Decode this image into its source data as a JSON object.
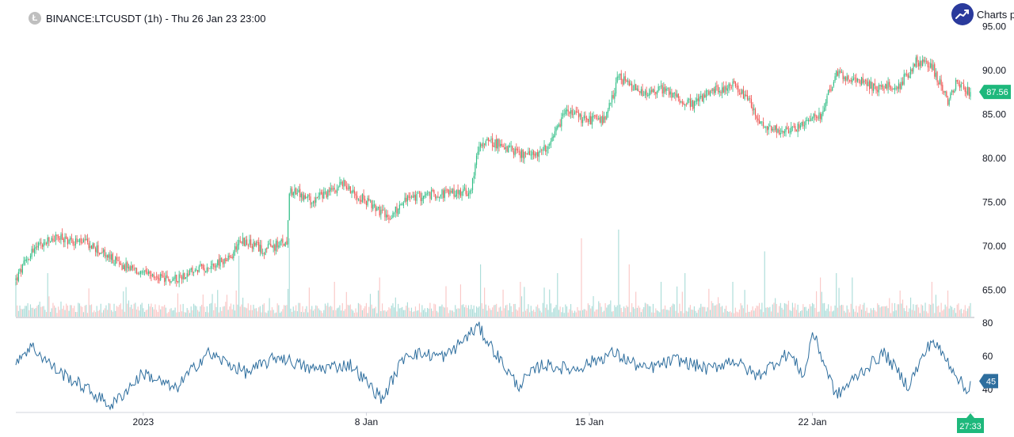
{
  "header": {
    "symbol_title": "BINANCE:LTCUSDT (1h) - Thu 26 Jan 23 23:00",
    "coin_icon_name": "litecoin-icon",
    "logo_text": "Charts p",
    "logo_icon_name": "trend-up-icon"
  },
  "colors": {
    "up": "#26a69a",
    "down": "#ef5350",
    "up_candle": "#2ebd85",
    "rsi_line": "#2e6e9e",
    "rsi_label_bg": "#2e6e9e",
    "price_label_bg": "#1eb87c",
    "axis_text": "#131722",
    "divider": "#b2b5be"
  },
  "chart_data": [
    {
      "type": "candlestick",
      "name": "price",
      "x_range": [
        "2022-12-28",
        "2023-01-26 23:00"
      ],
      "ylim": [
        62,
        95.5
      ],
      "y_ticks": [
        "95.00",
        "90.00",
        "85.00",
        "80.00",
        "75.00",
        "70.00",
        "65.00"
      ],
      "y_tick_values": [
        95,
        90,
        85,
        80,
        75,
        70,
        65
      ],
      "last_price": "87.56",
      "last_price_value": 87.56,
      "close_anchors": [
        [
          "2022-12-28 00:00",
          66.2
        ],
        [
          "2022-12-28 12:00",
          69.5
        ],
        [
          "2022-12-29 06:00",
          71.0
        ],
        [
          "2022-12-30 06:00",
          70.3
        ],
        [
          "2022-12-31 06:00",
          68.0
        ],
        [
          "2023-01-01 00:00",
          66.8
        ],
        [
          "2023-01-01 20:00",
          66.1
        ],
        [
          "2023-01-02 18:00",
          67.4
        ],
        [
          "2023-01-03 18:00",
          68.6
        ],
        [
          "2023-01-04 00:00",
          70.8
        ],
        [
          "2023-01-04 18:00",
          69.6
        ],
        [
          "2023-01-05 12:00",
          70.5
        ],
        [
          "2023-01-05 14:00",
          76.5
        ],
        [
          "2023-01-06 06:00",
          75.2
        ],
        [
          "2023-01-06 18:00",
          76.0
        ],
        [
          "2023-01-07 06:00",
          77.2
        ],
        [
          "2023-01-07 18:00",
          75.8
        ],
        [
          "2023-01-08 12:00",
          73.8
        ],
        [
          "2023-01-08 16:00",
          73.1
        ],
        [
          "2023-01-09 06:00",
          75.4
        ],
        [
          "2023-01-10 06:00",
          76.0
        ],
        [
          "2023-01-11 06:00",
          76.2
        ],
        [
          "2023-01-11 14:00",
          82.0
        ],
        [
          "2023-01-12 06:00",
          81.6
        ],
        [
          "2023-01-13 00:00",
          80.2
        ],
        [
          "2023-01-13 18:00",
          81.2
        ],
        [
          "2023-01-14 06:00",
          85.5
        ],
        [
          "2023-01-14 18:00",
          84.5
        ],
        [
          "2023-01-15 12:00",
          84.3
        ],
        [
          "2023-01-15 22:00",
          89.3
        ],
        [
          "2023-01-16 06:00",
          88.3
        ],
        [
          "2023-01-16 18:00",
          87.2
        ],
        [
          "2023-01-17 06:00",
          88.0
        ],
        [
          "2023-01-18 06:00",
          86.0
        ],
        [
          "2023-01-18 18:00",
          87.5
        ],
        [
          "2023-01-19 12:00",
          88.3
        ],
        [
          "2023-01-20 00:00",
          86.6
        ],
        [
          "2023-01-20 12:00",
          83.3
        ],
        [
          "2023-01-21 06:00",
          83.1
        ],
        [
          "2023-01-21 18:00",
          84.0
        ],
        [
          "2023-01-22 06:00",
          85.0
        ],
        [
          "2023-01-22 18:00",
          89.6
        ],
        [
          "2023-01-23 06:00",
          89.2
        ],
        [
          "2023-01-24 00:00",
          88.0
        ],
        [
          "2023-01-24 18:00",
          88.4
        ],
        [
          "2023-01-25 06:00",
          91.0
        ],
        [
          "2023-01-25 18:00",
          90.5
        ],
        [
          "2023-01-26 06:00",
          86.6
        ],
        [
          "2023-01-26 12:00",
          88.6
        ],
        [
          "2023-01-26 23:00",
          87.56
        ]
      ],
      "volume_spikes": [
        [
          "2022-12-28 00:00",
          4
        ],
        [
          "2022-12-29 00:00",
          5
        ],
        [
          "2023-01-04 00:00",
          7
        ],
        [
          "2023-01-05 14:00",
          9
        ],
        [
          "2023-01-07 00:00",
          4
        ],
        [
          "2023-01-08 10:00",
          4.5
        ],
        [
          "2023-01-10 12:00",
          3.5
        ],
        [
          "2023-01-11 14:00",
          6
        ],
        [
          "2023-01-12 20:00",
          4
        ],
        [
          "2023-01-14 00:00",
          5
        ],
        [
          "2023-01-14 18:00",
          9
        ],
        [
          "2023-01-15 22:00",
          10
        ],
        [
          "2023-01-16 06:00",
          6
        ],
        [
          "2023-01-17 06:00",
          4
        ],
        [
          "2023-01-18 00:00",
          5
        ],
        [
          "2023-01-19 12:00",
          4
        ],
        [
          "2023-01-20 12:00",
          7.5
        ],
        [
          "2023-01-22 06:00",
          4.5
        ],
        [
          "2023-01-22 18:00",
          5
        ],
        [
          "2023-01-23 06:00",
          4.5
        ],
        [
          "2023-01-24 18:00",
          3
        ],
        [
          "2023-01-25 18:00",
          4
        ],
        [
          "2023-01-26 06:00",
          3
        ]
      ]
    },
    {
      "type": "line",
      "name": "rsi",
      "ylim": [
        27,
        82
      ],
      "y_ticks": [
        "80",
        "60",
        "40"
      ],
      "y_tick_values": [
        80,
        60,
        40
      ],
      "last_value": "45",
      "last_value_numeric": 45,
      "anchors": [
        [
          "2022-12-28 00:00",
          58
        ],
        [
          "2022-12-28 12:00",
          66
        ],
        [
          "2022-12-29 06:00",
          52
        ],
        [
          "2022-12-30 06:00",
          40
        ],
        [
          "2022-12-31 00:00",
          30
        ],
        [
          "2023-01-01 00:00",
          50
        ],
        [
          "2023-01-02 00:00",
          40
        ],
        [
          "2023-01-03 00:00",
          62
        ],
        [
          "2023-01-04 06:00",
          50
        ],
        [
          "2023-01-05 06:00",
          60
        ],
        [
          "2023-01-06 06:00",
          52
        ],
        [
          "2023-01-07 12:00",
          55
        ],
        [
          "2023-01-08 12:00",
          34
        ],
        [
          "2023-01-09 06:00",
          62
        ],
        [
          "2023-01-10 12:00",
          60
        ],
        [
          "2023-01-11 12:00",
          78
        ],
        [
          "2023-01-12 18:00",
          42
        ],
        [
          "2023-01-13 12:00",
          55
        ],
        [
          "2023-01-14 12:00",
          52
        ],
        [
          "2023-01-15 18:00",
          62
        ],
        [
          "2023-01-16 18:00",
          52
        ],
        [
          "2023-01-17 18:00",
          58
        ],
        [
          "2023-01-18 18:00",
          52
        ],
        [
          "2023-01-19 12:00",
          58
        ],
        [
          "2023-01-20 06:00",
          48
        ],
        [
          "2023-01-21 06:00",
          62
        ],
        [
          "2023-01-21 18:00",
          48
        ],
        [
          "2023-01-22 00:00",
          75
        ],
        [
          "2023-01-22 18:00",
          36
        ],
        [
          "2023-01-23 12:00",
          50
        ],
        [
          "2023-01-24 06:00",
          62
        ],
        [
          "2023-01-25 00:00",
          42
        ],
        [
          "2023-01-25 18:00",
          70
        ],
        [
          "2023-01-26 12:00",
          50
        ],
        [
          "2023-01-26 20:00",
          38
        ],
        [
          "2023-01-26 23:00",
          45
        ]
      ]
    }
  ],
  "x_axis": {
    "ticks": [
      {
        "label": "2023",
        "at": "2023-01-01"
      },
      {
        "label": "8 Jan",
        "at": "2023-01-08"
      },
      {
        "label": "15 Jan",
        "at": "2023-01-15"
      },
      {
        "label": "22 Jan",
        "at": "2023-01-22"
      }
    ],
    "countdown": "27:33"
  }
}
